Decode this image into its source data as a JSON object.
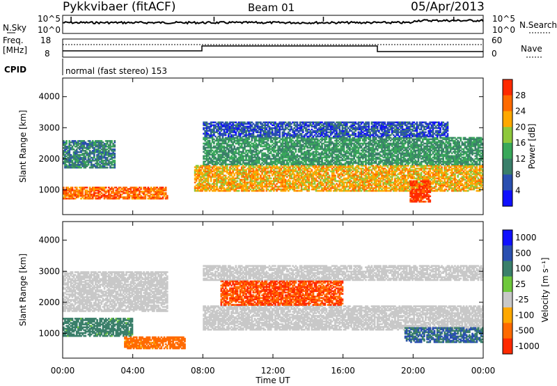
{
  "header": {
    "station": "Pykkvibaer (fitACF)",
    "beam": "Beam 01",
    "date": "05/Apr/2013"
  },
  "strip_labels": {
    "nsky": "N.Sky",
    "freq": "Freq.",
    "freq_unit": "[MHz]",
    "cpid": "CPID",
    "nsearch": "N.Search",
    "nave": "Nave",
    "cpid_text": "normal (fast stereo) 153"
  },
  "strip_ticks": {
    "noise_left": [
      "10^5",
      "10^0"
    ],
    "noise_right": [
      "10^5",
      "10^0"
    ],
    "freq_left": [
      "18",
      "8"
    ],
    "nave_right": [
      "60",
      "0"
    ]
  },
  "colors": {
    "power": [
      "#1010ff",
      "#2a4fb0",
      "#3a7f6a",
      "#39a85a",
      "#8ec83c",
      "#ffa800",
      "#ff6a00",
      "#ff2a00"
    ],
    "velocity": [
      "#1010ff",
      "#2a4fb0",
      "#3a7f6a",
      "#6ec83c",
      "#c8c8c8",
      "#ffa800",
      "#ff6a00",
      "#ff2a00"
    ]
  },
  "chart_data": [
    {
      "type": "heatmap",
      "panel": "power",
      "xlabel": "",
      "ylabel": "Slant Range [km]",
      "ylim": [
        200,
        4600
      ],
      "yticks": [
        "1000",
        "2000",
        "3000",
        "4000"
      ],
      "colorbar_label": "Power [dB]",
      "colorbar_ticks": [
        "4",
        "8",
        "12",
        "16",
        "20",
        "24",
        "28"
      ],
      "bands": [
        {
          "name": "near echoes 00-06",
          "x": [
            0,
            6
          ],
          "range_km": [
            700,
            1100
          ],
          "level_db": 26
        },
        {
          "name": "rising band 00-03",
          "x": [
            0,
            3
          ],
          "range_km": [
            1700,
            2600
          ],
          "level_db": 10
        },
        {
          "name": "main band 08-24",
          "x": [
            7.5,
            24
          ],
          "range_km": [
            950,
            1800
          ],
          "level_db": 22
        },
        {
          "name": "upper band 08-24",
          "x": [
            8,
            24
          ],
          "range_km": [
            1800,
            2700
          ],
          "level_db": 12
        },
        {
          "name": "top fringe",
          "x": [
            8,
            22
          ],
          "range_km": [
            2700,
            3200
          ],
          "level_db": 6
        },
        {
          "name": "strong patch 20-21",
          "x": [
            19.8,
            21
          ],
          "range_km": [
            600,
            1300
          ],
          "level_db": 30
        }
      ]
    },
    {
      "type": "heatmap",
      "panel": "velocity",
      "xlabel": "Time UT",
      "ylabel": "Slant Range [km]",
      "ylim": [
        200,
        4600
      ],
      "yticks": [
        "1000",
        "2000",
        "3000",
        "4000"
      ],
      "xticks": [
        "00:00",
        "04:00",
        "08:00",
        "12:00",
        "16:00",
        "20:00",
        "00:00"
      ],
      "colorbar_label": "Velocity [m s⁻¹]",
      "colorbar_ticks": [
        "1000",
        "500",
        "100",
        "25",
        "-25",
        "-100",
        "-500",
        "-1000"
      ],
      "bands": [
        {
          "name": "ground scatter main",
          "x": [
            8,
            24
          ],
          "range_km": [
            1100,
            1900
          ],
          "velocity": 0
        },
        {
          "name": "ground scatter upper",
          "x": [
            8,
            24
          ],
          "range_km": [
            2700,
            3200
          ],
          "velocity": 0
        },
        {
          "name": "early ground scatter",
          "x": [
            0,
            6
          ],
          "range_km": [
            1700,
            3000
          ],
          "velocity": 0
        },
        {
          "name": "ionospheric near 00-04",
          "x": [
            0,
            4
          ],
          "range_km": [
            900,
            1500
          ],
          "velocity": 150
        },
        {
          "name": "ionospheric 04-07",
          "x": [
            3.5,
            7
          ],
          "range_km": [
            500,
            900
          ],
          "velocity": -150
        },
        {
          "name": "eastward flow 09-16",
          "x": [
            9,
            16
          ],
          "range_km": [
            1900,
            2700
          ],
          "velocity": -300
        },
        {
          "name": "late near echoes",
          "x": [
            19.5,
            24
          ],
          "range_km": [
            700,
            1200
          ],
          "velocity": 300
        }
      ]
    }
  ]
}
